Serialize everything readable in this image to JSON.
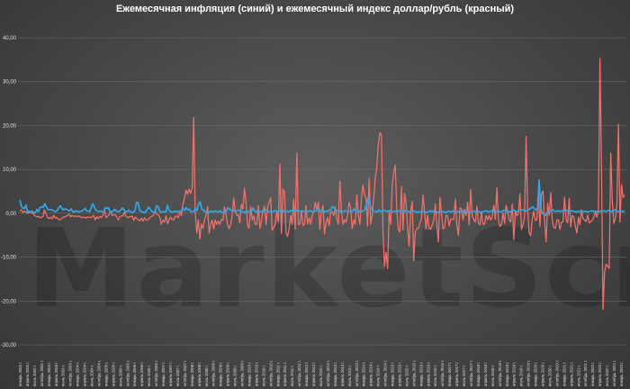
{
  "chart_data": {
    "type": "line",
    "title": "Ежемесячная инфляция (синий) и ежемесячный индекс доллар/рубль (красный)",
    "xlabel": "",
    "ylabel": "",
    "ylim": [
      -30,
      40
    ],
    "y_ticks": [
      "40,00",
      "30,00",
      "20,00",
      "10,00",
      "0,00",
      "-10,00",
      "-20,00",
      "-30,00"
    ],
    "grid": true,
    "x_labels": [
      "январь 2002 г.",
      "апрель 2002 г.",
      "июль 2002 г.",
      "октябрь 2002 г.",
      "январь 2003 г.",
      "апрель 2003 г.",
      "июль 2003 г.",
      "октябрь 2003 г.",
      "январь 2004 г.",
      "апрель 2004 г.",
      "июль 2004 г.",
      "октябрь 2004 г.",
      "январь 2005 г.",
      "апрель 2005 г.",
      "июль 2005 г.",
      "октябрь 2005 г.",
      "январь 2006 г.",
      "апрель 2006 г.",
      "июль 2006 г.",
      "октябрь 2006 г.",
      "январь 2007 г.",
      "апрель 2007 г.",
      "июль 2007 г.",
      "октябрь 2007 г.",
      "январь 2008 г.",
      "апрель 2008 г.",
      "июль 2008 г.",
      "октябрь 2008 г.",
      "январь 2009 г.",
      "апрель 2009 г.",
      "июль 2009 г.",
      "октябрь 2009 г.",
      "январь 2010 г.",
      "апрель 2010 г.",
      "июль 2010 г.",
      "октябрь 2010 г.",
      "январь 2011 г.",
      "апрель 2011 г.",
      "июль 2011 г.",
      "октябрь 2011 г.",
      "январь 2012 г.",
      "апрель 2012 г.",
      "июль 2012 г.",
      "октябрь 2012 г.",
      "январь 2013 г.",
      "апрель 2013 г.",
      "июль 2013 г.",
      "октябрь 2013 г.",
      "январь 2014 г.",
      "апрель 2014 г.",
      "июль 2014 г.",
      "октябрь 2014 г.",
      "январь 2015 г.",
      "апрель 2015 г.",
      "июль 2015 г.",
      "октябрь 2015 г.",
      "январь 2016 г.",
      "апрель 2016 г.",
      "июль 2016 г.",
      "октябрь 2016 г.",
      "январь 2017 г.",
      "апрель 2017 г.",
      "июль 2017 г.",
      "октябрь 2017 г.",
      "январь 2018 г.",
      "апрель 2018 г.",
      "июль 2018 г.",
      "октябрь 2018 г.",
      "январь 2019 г.",
      "апрель 2019 г.",
      "июль 2019 г.",
      "октябрь 2019 г.",
      "январь 2020 г.",
      "апрель 2020 г.",
      "июль 2020 г.",
      "октябрь 2020 г.",
      "январь 2021 г.",
      "апрель 2021 г.",
      "июль 2021 г.",
      "октябрь 2021 г.",
      "январь 2022 г.",
      "апрель 2022 г.",
      "июль 2022 г.",
      "октябрь 2022 г.",
      "январь 2023 г."
    ],
    "series": [
      {
        "color": "#f0706a",
        "values": [
          0.5,
          0.8,
          0.2,
          0.5,
          0.3,
          0.0,
          0.1,
          0.3,
          0.1,
          -0.3,
          -0.6,
          -0.8,
          -0.7,
          -1.0,
          -0.9,
          -0.8,
          0.8,
          -0.1,
          -0.9,
          -1.2,
          -0.9,
          -1.3,
          -0.5,
          -1.1,
          -0.9,
          -1.4,
          -1.5,
          -1.2,
          -1.0,
          -0.8,
          -0.7,
          -0.5,
          -0.2,
          -0.8,
          -0.5,
          -0.7,
          -0.6,
          -0.8,
          -0.6,
          -0.7,
          -1.0,
          -0.9,
          -0.9,
          -1.1,
          -0.8,
          -0.9,
          -1.0,
          -0.8,
          -0.5,
          -1.5,
          -0.8,
          -1.2,
          -0.7,
          -1.0,
          -0.5,
          0.9,
          -1.0,
          -0.7,
          -0.3,
          0.5,
          -0.5,
          -0.4,
          -0.3,
          -0.8,
          -1.5,
          -0.8,
          -0.6,
          -0.6,
          0.3,
          -0.7,
          -1.0,
          -0.8,
          -0.8,
          -0.6,
          -1.6,
          -0.9,
          -1.2,
          -1.5,
          -1.7,
          -1.1,
          -1.8,
          -1.0,
          -1.6,
          -1.5,
          -1.3,
          -0.8,
          -0.7,
          -0.4,
          0.5,
          -0.2,
          -0.3,
          -0.9,
          -2.5,
          -1.6,
          -2.0,
          -0.6,
          -2.4,
          -1.5,
          -0.9,
          -1.4,
          -1.5,
          -0.8,
          -0.6,
          -1.0,
          0.5,
          -0.5,
          2.0,
          3.5,
          5.3,
          4.3,
          5.5,
          4.5,
          5.8,
          21.8,
          0.2,
          -4.5,
          -1.5,
          -5.9,
          -2.5,
          -3.5,
          -1.5,
          -0.5,
          1.5,
          -4.5,
          -2.5,
          -1.6,
          -3.6,
          -1.5,
          -2.5,
          -1.8,
          -2.5,
          -1.4,
          -1.6,
          1.5,
          -0.3,
          -2.5,
          -3.5,
          -2.6,
          -0.5,
          3.5,
          0.4,
          -0.5,
          -0.3,
          -2.2,
          2.0,
          1.0,
          5.7,
          2.5,
          -2.9,
          -3.4,
          1.5,
          -1.5,
          -0.6,
          -2.5,
          -2.5,
          1.8,
          -3.4,
          -1.8,
          0.5,
          1.6,
          -2.5,
          1.5,
          2.4,
          3.5,
          -3.9,
          -3.2,
          -2.5,
          0.5,
          -1.9,
          11.2,
          -4.6,
          5.5,
          4.8,
          -4.5,
          -5.3,
          -3.6,
          -0.5,
          -2.5,
          3.2,
          -3.6,
          13.7,
          -2.6,
          -2.4,
          0.5,
          -2.8,
          -2.5,
          1.7,
          -2.4,
          -1.0,
          -2.5,
          -0.5,
          0.5,
          2.5,
          0.6,
          2.6,
          -3.7,
          0.3,
          1.8,
          -4.7,
          -2.2,
          -1.0,
          -2.8,
          0.3,
          0.4,
          -0.5,
          1.4,
          -1.2,
          -2.5,
          7.3,
          0.5,
          -2.5,
          -1.5,
          -2.0,
          -0.5,
          2.5,
          1.3,
          -3.5,
          -1.5,
          -2.5,
          4.2,
          -0.5,
          -2.5,
          3.4,
          6.4,
          4.2,
          3.5,
          -2.9,
          8.0,
          -2.5,
          -0.3,
          3.5,
          8.0,
          10.6,
          15.8,
          18.4,
          17.8,
          -4.0,
          -12.1,
          -8.9,
          -12.6,
          0.5,
          -2.5,
          6.2,
          9.3,
          11.0,
          0.6,
          -3.6,
          -4.3,
          6.1,
          -3.8,
          4.5,
          2.4,
          -3.2,
          -7.5,
          0.5,
          2.7,
          -10.8,
          -4.3,
          -3.5,
          -3.4,
          -2.3,
          -1.2,
          4.2,
          0.4,
          -3.5,
          -0.4,
          -3.5,
          -3.6,
          -2.6,
          -1.6,
          2.1,
          -2.6,
          -6.5,
          3.6,
          0.1,
          -3.6,
          -3.2,
          -0.5,
          -0.6,
          -2.9,
          -1.4,
          -1.3,
          -1.3,
          3.2,
          -2.5,
          -5.0,
          1.2,
          1.0,
          -1.5,
          0.9,
          -0.5,
          2.5,
          -2.6,
          5.4,
          -0.7,
          -1.5,
          -2.0,
          1.5,
          -2.2,
          -2.6,
          0.2,
          -2.5,
          -2.5,
          -0.5,
          -1.5,
          -0.5,
          -1.5,
          -0.8,
          1.8,
          -1.4,
          5.8,
          -1.5,
          -3.0,
          -2.5,
          0.1,
          -2.3,
          1.8,
          0.5,
          -1.5,
          -2.0,
          2.1,
          -6.0,
          0.5,
          -0.6,
          -0.1,
          4.5,
          -3.7,
          -2.5,
          -0.8,
          17.5,
          1.0,
          -4.5,
          -5.1,
          -1.4,
          0.5,
          -1.6,
          -1.5,
          4.3,
          -3.0,
          4.3,
          5.1,
          -1.8,
          -6.5,
          2.3,
          -0.5,
          4.7,
          -1.7,
          -3.2,
          -3.4,
          -1.5,
          -1.5,
          -3.7,
          -2.0,
          -1.9,
          3.7,
          -1.4,
          -2.2,
          3.4,
          -3.1,
          -0.5,
          -0.8,
          -3.0,
          -4.5,
          -0.9,
          -2.6,
          0.8,
          -1.2,
          -1.5,
          -1.9,
          -0.4,
          -2.2,
          -1.9,
          -1.6,
          -0.9,
          0.3,
          -0.9,
          0.8,
          35.3,
          9.8,
          -21.9,
          -13.4,
          -11.6,
          -12.1,
          -12.6,
          13.7,
          2.8,
          -2.3,
          -1.3,
          2.0,
          20.3,
          -2.0,
          6.5,
          3.6,
          4.2
        ],
        "sample_step": 0.41
      },
      {
        "color": "#2fa8e8",
        "values": [
          3.1,
          1.6,
          1.2,
          1.1,
          1.9,
          0.3,
          0.5,
          0.3,
          0.5,
          0.1,
          0.1,
          0.9,
          0.4,
          1.3,
          1.5,
          1.3,
          2.2,
          1.5,
          0.9,
          0.8,
          0.9,
          0.7,
          0.5,
          0.4,
          0.6,
          1.2,
          1.7,
          1.1,
          0.8,
          1.0,
          0.9,
          0.7,
          0.5,
          1.0,
          0.4,
          0.3,
          0.6,
          0.4,
          0.3,
          0.5,
          0.5,
          0.8,
          1.1,
          0.6,
          0.5,
          0.4,
          1.4,
          2.2,
          1.3,
          0.7,
          0.5,
          0.4,
          0.5,
          0.4,
          0.3,
          1.3,
          1.1,
          1.3,
          0.4,
          0.3,
          0.5,
          0.9,
          0.5,
          0.4,
          0.4,
          0.8,
          1.2,
          0.8,
          0.3,
          0.4,
          0.7,
          0.4,
          0.2,
          0.3,
          0.5,
          2.4,
          2.5,
          0.8,
          0.4,
          0.3,
          0.2,
          0.3,
          0.9,
          1.4,
          0.9,
          0.4,
          0.3,
          0.4,
          1.7,
          1.5,
          0.4,
          0.3,
          0.3,
          0.4,
          0.3,
          1.8,
          0.7,
          0.4,
          0.3,
          0.4,
          0.5,
          0.3,
          0.5,
          0.4,
          0.7,
          1.1,
          0.6,
          1.3,
          0.8,
          1.0,
          0.4,
          0.3,
          0.5,
          1.2,
          0.6,
          2.2,
          2.6,
          1.0,
          0.8,
          0.4,
          0.3,
          0.2,
          0.3,
          0.5,
          0.3,
          0.4,
          0.5,
          0.4,
          0.3,
          0.6,
          0.2,
          0.2,
          0.3,
          0.5,
          1.3,
          1.0,
          0.6,
          0.8,
          0.5,
          0.4,
          0.6,
          0.8,
          0.4,
          0.5,
          0.3,
          0.2,
          0.6,
          0.4,
          0.3,
          0.4,
          1.2,
          0.6,
          0.3,
          0.7,
          0.5,
          0.4,
          0.3,
          0.5,
          0.8,
          0.5,
          0.4,
          0.5,
          0.3,
          0.4,
          0.6,
          0.5,
          0.4,
          0.7,
          0.4,
          0.3,
          0.6,
          0.4,
          0.5,
          0.3,
          0.6,
          0.6,
          0.5,
          1.0,
          0.7,
          0.4,
          0.5,
          0.6,
          0.4,
          0.5,
          0.5,
          0.3,
          0.5,
          0.6,
          0.4,
          0.4,
          0.5,
          0.6,
          1.2,
          0.5,
          0.4,
          0.5,
          0.3,
          0.5,
          0.4,
          0.7,
          0.8,
          1.5,
          1.3,
          0.9,
          0.6,
          0.4,
          0.5,
          0.3,
          0.4,
          0.6,
          0.5,
          0.4,
          0.5,
          0.3,
          0.4,
          1.0,
          0.6,
          0.4,
          0.5,
          0.3,
          0.4,
          0.6,
          0.8,
          2.1,
          3.6,
          2.3,
          1.2,
          0.6,
          0.5,
          0.4,
          0.3,
          0.8,
          0.4,
          0.5,
          0.7,
          0.6,
          0.4,
          0.5,
          0.6,
          0.4,
          0.3,
          0.5,
          0.4,
          0.6,
          0.5,
          0.3,
          0.4,
          0.2,
          0.6,
          0.5,
          0.4,
          0.3,
          0.5,
          0.6,
          0.4,
          0.3,
          0.2,
          0.4,
          0.3,
          0.5,
          0.4,
          0.3,
          0.2,
          0.4,
          0.6,
          0.3,
          0.5,
          0.3,
          0.2,
          0.3,
          0.4,
          0.5,
          0.4,
          0.3,
          0.2,
          0.4,
          0.5,
          0.3,
          0.4,
          0.6,
          0.3,
          0.2,
          0.4,
          0.4,
          0.3,
          0.5,
          0.6,
          0.4,
          0.3,
          0.2,
          0.3,
          0.4,
          0.5,
          0.4,
          0.3,
          0.4,
          0.2,
          0.3,
          0.4,
          0.5,
          0.6,
          0.4,
          0.3,
          0.5,
          0.7,
          0.4,
          0.3,
          0.4,
          0.5,
          0.3,
          0.4,
          0.6,
          0.7,
          0.5,
          0.4,
          0.3,
          0.5,
          0.8,
          0.7,
          0.5,
          0.4,
          0.6,
          0.7,
          0.8,
          0.7,
          0.5,
          0.6,
          0.7,
          1.0,
          1.2,
          1.5,
          1.0,
          0.8,
          1.2,
          7.6,
          1.6,
          0.1,
          -0.3,
          -0.5,
          0.1,
          0.5,
          0.4,
          0.6,
          0.8,
          0.5,
          0.4,
          0.6,
          0.5,
          0.4,
          0.6,
          0.7,
          0.8,
          0.5,
          0.4,
          0.5,
          0.6,
          0.5,
          0.4,
          0.3,
          0.5,
          0.4,
          0.6,
          0.5,
          0.4,
          0.5,
          0.3,
          0.4,
          0.5,
          0.6,
          0.4,
          0.5,
          0.4,
          0.3,
          0.4,
          0.5,
          0.6,
          0.5,
          0.4,
          0.6,
          0.7,
          0.5,
          0.4,
          0.6,
          0.8,
          0.5,
          0.4,
          0.6,
          0.5,
          0.4,
          0.5
        ],
        "sample_step": 0.41
      }
    ]
  },
  "watermark": "MarketScreen"
}
